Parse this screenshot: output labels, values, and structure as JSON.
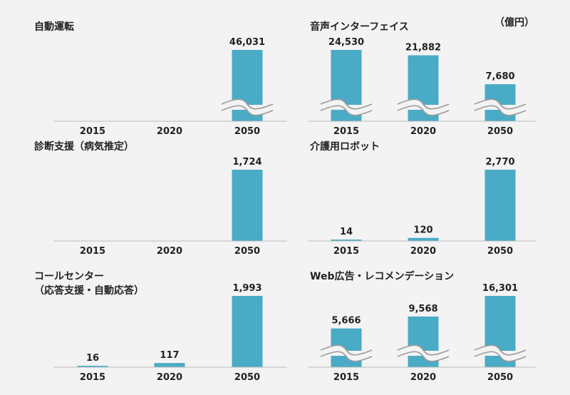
{
  "unit_label": "（億円）",
  "chart_data": [
    {
      "type": "bar",
      "title": "自動運転",
      "categories": [
        "2015",
        "2020",
        "2050"
      ],
      "values": [
        null,
        null,
        46031
      ],
      "value_labels": [
        "",
        "",
        "46,031"
      ],
      "axis_break": true
    },
    {
      "type": "bar",
      "title": "音声インターフェイス",
      "categories": [
        "2015",
        "2020",
        "2050"
      ],
      "values": [
        24530,
        21882,
        7680
      ],
      "value_labels": [
        "24,530",
        "21,882",
        "7,680"
      ],
      "axis_break": true
    },
    {
      "type": "bar",
      "title": "診断支援（病気推定）",
      "categories": [
        "2015",
        "2020",
        "2050"
      ],
      "values": [
        null,
        null,
        1724
      ],
      "value_labels": [
        "",
        "",
        "1,724"
      ],
      "axis_break": false
    },
    {
      "type": "bar",
      "title": "介護用ロボット",
      "categories": [
        "2015",
        "2020",
        "2050"
      ],
      "values": [
        14,
        120,
        2770
      ],
      "value_labels": [
        "14",
        "120",
        "2,770"
      ],
      "axis_break": false
    },
    {
      "type": "bar",
      "title": "コールセンター\n（応答支援・自動応答）",
      "categories": [
        "2015",
        "2020",
        "2050"
      ],
      "values": [
        16,
        117,
        1993
      ],
      "value_labels": [
        "16",
        "117",
        "1,993"
      ],
      "axis_break": false
    },
    {
      "type": "bar",
      "title": "Web広告・レコメンデーション",
      "categories": [
        "2015",
        "2020",
        "2050"
      ],
      "values": [
        5666,
        9568,
        16301
      ],
      "value_labels": [
        "5,666",
        "9,568",
        "16,301"
      ],
      "axis_break": true
    }
  ],
  "colors": {
    "bar": "#4aabc6",
    "axis": "#bbbbbb",
    "background": "#f3f3f3"
  }
}
